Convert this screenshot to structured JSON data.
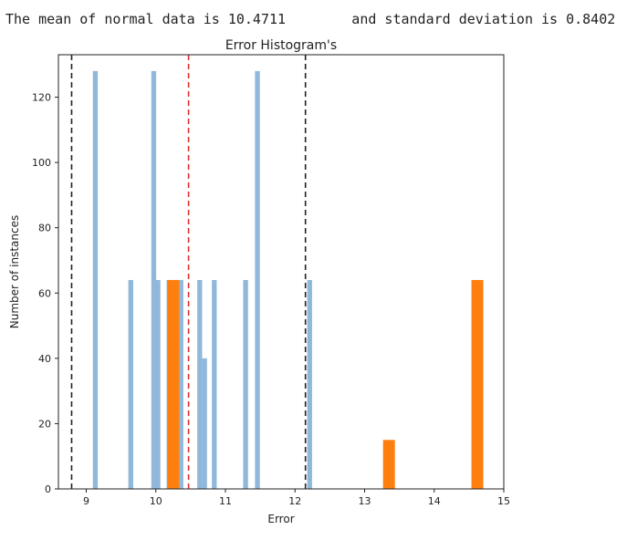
{
  "output": {
    "text": "The mean of normal data is 10.4711        and standard deviation is 0.8402"
  },
  "chart_data": {
    "type": "bar",
    "title": "Error Histogram's",
    "xlabel": "Error",
    "ylabel": "Number of instances",
    "xlim": [
      8.6,
      15.0
    ],
    "ylim": [
      0,
      133
    ],
    "xticks": [
      9,
      10,
      11,
      12,
      13,
      14,
      15
    ],
    "yticks": [
      0,
      20,
      40,
      60,
      80,
      100,
      120
    ],
    "series": [
      {
        "color": "#8fb8da",
        "bin_width": 0.07,
        "bins": [
          {
            "x": 9.13,
            "count": 128
          },
          {
            "x": 9.64,
            "count": 64
          },
          {
            "x": 9.97,
            "count": 128
          },
          {
            "x": 10.03,
            "count": 64
          },
          {
            "x": 10.19,
            "count": 64
          },
          {
            "x": 10.36,
            "count": 64
          },
          {
            "x": 10.63,
            "count": 64
          },
          {
            "x": 10.7,
            "count": 40
          },
          {
            "x": 10.84,
            "count": 64
          },
          {
            "x": 11.29,
            "count": 64
          },
          {
            "x": 11.46,
            "count": 128
          },
          {
            "x": 12.21,
            "count": 64
          }
        ]
      },
      {
        "color": "#ff7f0e",
        "bin_width": 0.17,
        "bins": [
          {
            "x": 10.25,
            "count": 64
          },
          {
            "x": 13.35,
            "count": 15
          },
          {
            "x": 14.62,
            "count": 64
          }
        ]
      }
    ],
    "vlines": [
      {
        "x": 8.79,
        "color": "#222222",
        "style": "dashed"
      },
      {
        "x": 10.47,
        "color": "#e0302a",
        "style": "dashed"
      },
      {
        "x": 12.15,
        "color": "#222222",
        "style": "dashed"
      }
    ]
  }
}
